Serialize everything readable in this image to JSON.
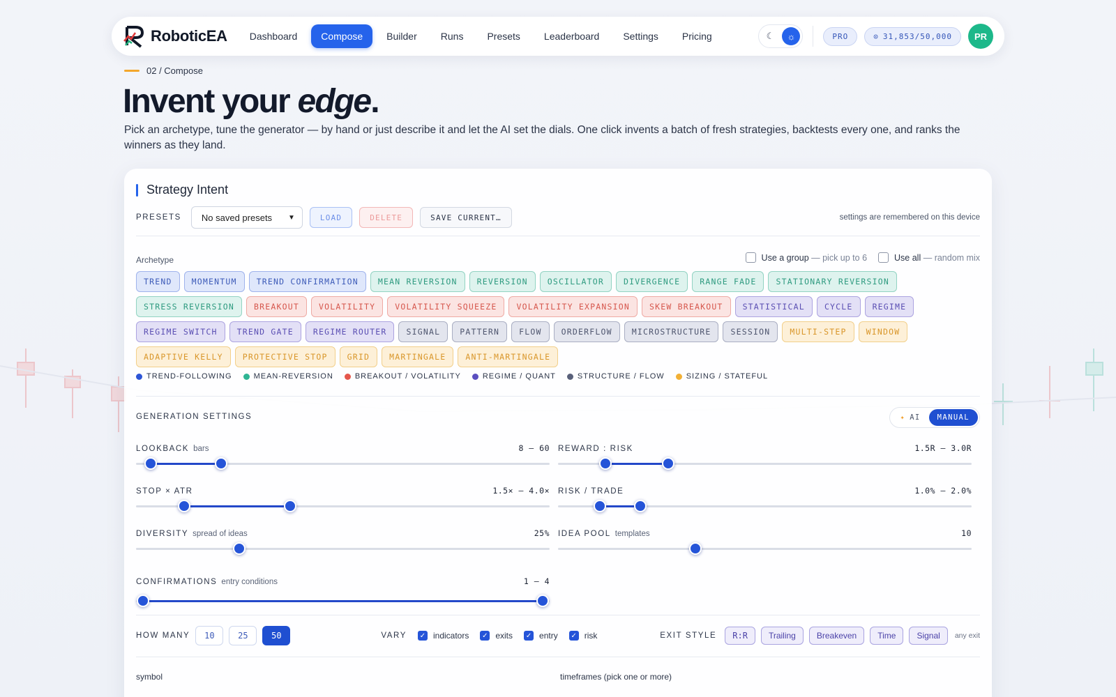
{
  "nav": {
    "brand": "RoboticEA",
    "links": [
      "Dashboard",
      "Compose",
      "Builder",
      "Runs",
      "Presets",
      "Leaderboard",
      "Settings",
      "Pricing"
    ],
    "active": "Compose",
    "plan_badge": "PRO",
    "credits": "31,853/50,000",
    "avatar_initials": "PR"
  },
  "header": {
    "breadcrumb": "02 / Compose",
    "title_lead": "Invent your ",
    "title_em": "edge",
    "title_tail": ".",
    "subtitle": "Pick an archetype, tune the generator — by hand or just describe it and let the AI set the dials. One click invents a batch of fresh strategies, backtests every one, and ranks the winners as they land."
  },
  "card": {
    "title": "Strategy Intent",
    "presets": {
      "label": "PRESETS",
      "selected": "No saved presets",
      "load": "LOAD",
      "delete": "DELETE",
      "save": "SAVE CURRENT…",
      "note": "settings are remembered on this device"
    },
    "archetype": {
      "label": "Archetype",
      "use_group": "Use a group",
      "use_group_hint": " — pick up to 6",
      "use_all": "Use all",
      "use_all_hint": " — random mix",
      "chips": [
        {
          "label": "TREND",
          "cat": "trend"
        },
        {
          "label": "MOMENTUM",
          "cat": "trend"
        },
        {
          "label": "TREND CONFIRMATION",
          "cat": "trend"
        },
        {
          "label": "MEAN REVERSION",
          "cat": "mean"
        },
        {
          "label": "REVERSION",
          "cat": "mean"
        },
        {
          "label": "OSCILLATOR",
          "cat": "mean"
        },
        {
          "label": "DIVERGENCE",
          "cat": "mean"
        },
        {
          "label": "RANGE FADE",
          "cat": "mean"
        },
        {
          "label": "STATIONARY REVERSION",
          "cat": "mean"
        },
        {
          "label": "STRESS REVERSION",
          "cat": "mean"
        },
        {
          "label": "BREAKOUT",
          "cat": "break"
        },
        {
          "label": "VOLATILITY",
          "cat": "break"
        },
        {
          "label": "VOLATILITY SQUEEZE",
          "cat": "break"
        },
        {
          "label": "VOLATILITY EXPANSION",
          "cat": "break"
        },
        {
          "label": "SKEW BREAKOUT",
          "cat": "break"
        },
        {
          "label": "STATISTICAL",
          "cat": "regime"
        },
        {
          "label": "CYCLE",
          "cat": "regime"
        },
        {
          "label": "REGIME",
          "cat": "regime"
        },
        {
          "label": "REGIME SWITCH",
          "cat": "regime"
        },
        {
          "label": "TREND GATE",
          "cat": "regime"
        },
        {
          "label": "REGIME ROUTER",
          "cat": "regime"
        },
        {
          "label": "SIGNAL",
          "cat": "struct"
        },
        {
          "label": "PATTERN",
          "cat": "struct"
        },
        {
          "label": "FLOW",
          "cat": "struct"
        },
        {
          "label": "ORDERFLOW",
          "cat": "struct"
        },
        {
          "label": "MICROSTRUCTURE",
          "cat": "struct"
        },
        {
          "label": "SESSION",
          "cat": "struct"
        },
        {
          "label": "MULTI-STEP",
          "cat": "sizing"
        },
        {
          "label": "WINDOW",
          "cat": "sizing"
        },
        {
          "label": "ADAPTIVE KELLY",
          "cat": "sizing"
        },
        {
          "label": "PROTECTIVE STOP",
          "cat": "sizing"
        },
        {
          "label": "GRID",
          "cat": "sizing"
        },
        {
          "label": "MARTINGALE",
          "cat": "sizing"
        },
        {
          "label": "ANTI-MARTINGALE",
          "cat": "sizing"
        }
      ],
      "legend": [
        {
          "label": "TREND-FOLLOWING",
          "color": "#2d55d6"
        },
        {
          "label": "MEAN-REVERSION",
          "color": "#2fb594"
        },
        {
          "label": "BREAKOUT / VOLATILITY",
          "color": "#e5574c"
        },
        {
          "label": "REGIME / QUANT",
          "color": "#5b4fc0"
        },
        {
          "label": "STRUCTURE / FLOW",
          "color": "#59607a"
        },
        {
          "label": "SIZING / STATEFUL",
          "color": "#f2b036"
        }
      ]
    },
    "generation": {
      "title": "GENERATION SETTINGS",
      "mode_ai": "AI",
      "mode_manual": "MANUAL",
      "sliders": [
        {
          "name": "LOOKBACK",
          "unit": "bars",
          "value": "8 – 60",
          "lo": 0.035,
          "hi": 0.205
        },
        {
          "name": "REWARD : RISK",
          "unit": "",
          "value": "1.5R – 3.0R",
          "lo": 0.115,
          "hi": 0.266
        },
        {
          "name": "STOP × ATR",
          "unit": "",
          "value": "1.5× – 4.0×",
          "lo": 0.117,
          "hi": 0.372
        },
        {
          "name": "RISK / TRADE",
          "unit": "",
          "value": "1.0% – 2.0%",
          "lo": 0.102,
          "hi": 0.199
        },
        {
          "name": "DIVERSITY",
          "unit": "spread of ideas",
          "value": "25%",
          "lo": null,
          "hi": 0.25
        },
        {
          "name": "IDEA POOL",
          "unit": "templates",
          "value": "10",
          "lo": null,
          "hi": 0.332
        },
        {
          "name": "CONFIRMATIONS",
          "unit": "entry conditions",
          "value": "1 – 4",
          "lo": 0.017,
          "hi": 0.983
        }
      ]
    },
    "how_many": {
      "label": "HOW MANY",
      "options": [
        "10",
        "25",
        "50"
      ],
      "selected": "50"
    },
    "vary": {
      "label": "VARY",
      "options": [
        "indicators",
        "exits",
        "entry",
        "risk"
      ]
    },
    "exit_style": {
      "label": "EXIT STYLE",
      "options": [
        "R:R",
        "Trailing",
        "Breakeven",
        "Time",
        "Signal"
      ],
      "note": "any exit"
    },
    "symbol_label": "symbol",
    "timeframes_label": "timeframes (pick one or more)"
  }
}
